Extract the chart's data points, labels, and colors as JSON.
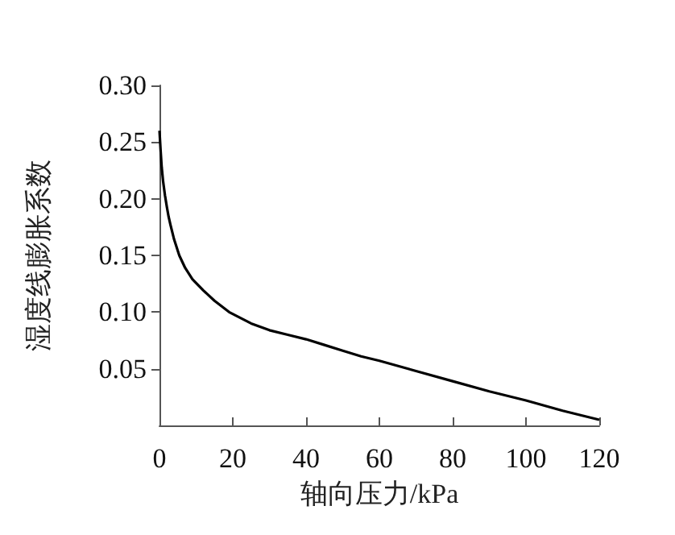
{
  "chart_data": {
    "type": "line",
    "xlabel": "轴向压力/kPa",
    "ylabel": "湿度线膨胀系数",
    "color": "#000000",
    "x": [
      0,
      0.3,
      0.6,
      1,
      1.5,
      2,
      2.5,
      3,
      4,
      5.4,
      7,
      9,
      12,
      15,
      19,
      22,
      25,
      30,
      35,
      40,
      45,
      50,
      55,
      60,
      70,
      80,
      90,
      100,
      110,
      120
    ],
    "values": [
      0.26,
      0.243,
      0.228,
      0.215,
      0.203,
      0.193,
      0.184,
      0.177,
      0.164,
      0.15,
      0.139,
      0.129,
      0.119,
      0.11,
      0.1,
      0.095,
      0.09,
      0.084,
      0.08,
      0.076,
      0.071,
      0.066,
      0.061,
      0.057,
      0.048,
      0.039,
      0.03,
      0.022,
      0.013,
      0.005
    ],
    "xlim": [
      0,
      120
    ],
    "xticks": [
      0,
      20,
      40,
      60,
      80,
      100,
      120
    ],
    "ylim": [
      0,
      0.3
    ],
    "yticks": [
      {
        "value": 0.05,
        "label": "0.05"
      },
      {
        "value": 0.1,
        "label": "0.10"
      },
      {
        "value": 0.15,
        "label": "0.15"
      },
      {
        "value": 0.2,
        "label": "0.20"
      },
      {
        "value": 0.25,
        "label": "0.25"
      },
      {
        "value": 0.3,
        "label": "0.30"
      }
    ],
    "grid": false,
    "marker": "none",
    "line_style": "solid"
  }
}
